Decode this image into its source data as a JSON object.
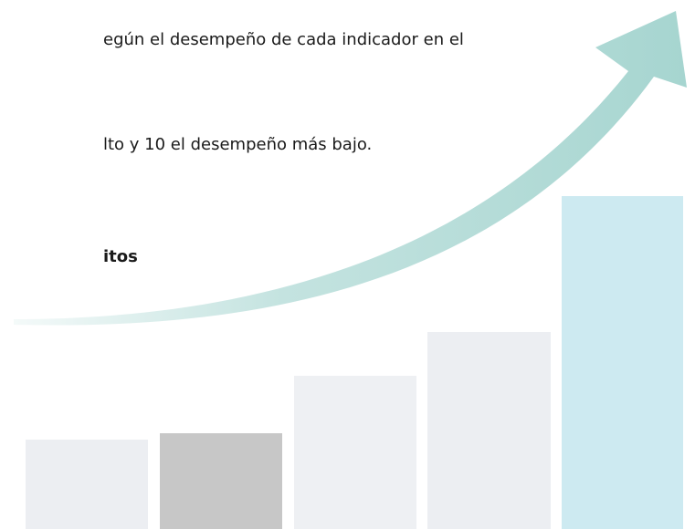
{
  "document": {
    "lines": [
      "egún el desempeño de cada indicador en el",
      "lto y 10 el desempeño más bajo."
    ],
    "bold_text": "itos"
  }
}
